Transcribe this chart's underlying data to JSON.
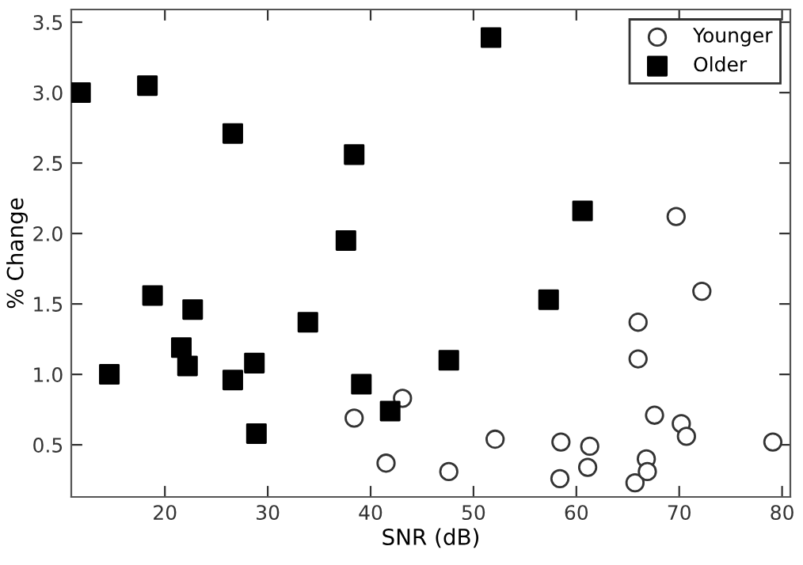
{
  "chart_data": {
    "type": "scatter",
    "xlabel": "SNR (dB)",
    "ylabel": "% Change",
    "xlim": [
      10.9,
      80.8
    ],
    "ylim": [
      0.13,
      3.59
    ],
    "xticks": [
      20,
      30,
      40,
      50,
      60,
      70,
      80
    ],
    "yticks": [
      0.5,
      {
        "value": 1,
        "label": "1.0"
      },
      1.5,
      {
        "value": 2,
        "label": "2.0"
      },
      2.5,
      {
        "value": 3,
        "label": "3.0"
      },
      3.5
    ],
    "grid": false,
    "legend": "top right",
    "series": [
      {
        "name": "Younger",
        "color": "#333333",
        "marker": "circle",
        "x": [
          38.4,
          41.5,
          43.1,
          47.6,
          52.1,
          58.5,
          58.4,
          61.3,
          61.1,
          65.7,
          66.0,
          66.0,
          66.8,
          66.9,
          67.6,
          70.2,
          70.7,
          72.2,
          79.1,
          69.7
        ],
        "values": [
          0.69,
          0.37,
          0.83,
          0.31,
          0.54,
          0.52,
          0.26,
          0.49,
          0.34,
          0.23,
          1.37,
          1.11,
          0.4,
          0.31,
          0.71,
          0.65,
          0.56,
          1.59,
          0.52,
          2.12
        ]
      },
      {
        "name": "Older",
        "color": "#000000",
        "marker": "square",
        "x": [
          11.8,
          18.3,
          26.6,
          38.4,
          37.6,
          51.7,
          60.6,
          18.8,
          22.7,
          14.6,
          21.6,
          22.2,
          26.6,
          28.7,
          28.9,
          33.9,
          39.1,
          41.9,
          47.6,
          57.3
        ],
        "values": [
          3.0,
          3.05,
          2.71,
          2.56,
          1.95,
          3.39,
          2.16,
          1.56,
          1.46,
          1.0,
          1.19,
          1.06,
          0.96,
          1.08,
          0.58,
          1.37,
          0.93,
          0.74,
          1.1,
          1.53
        ]
      }
    ]
  }
}
